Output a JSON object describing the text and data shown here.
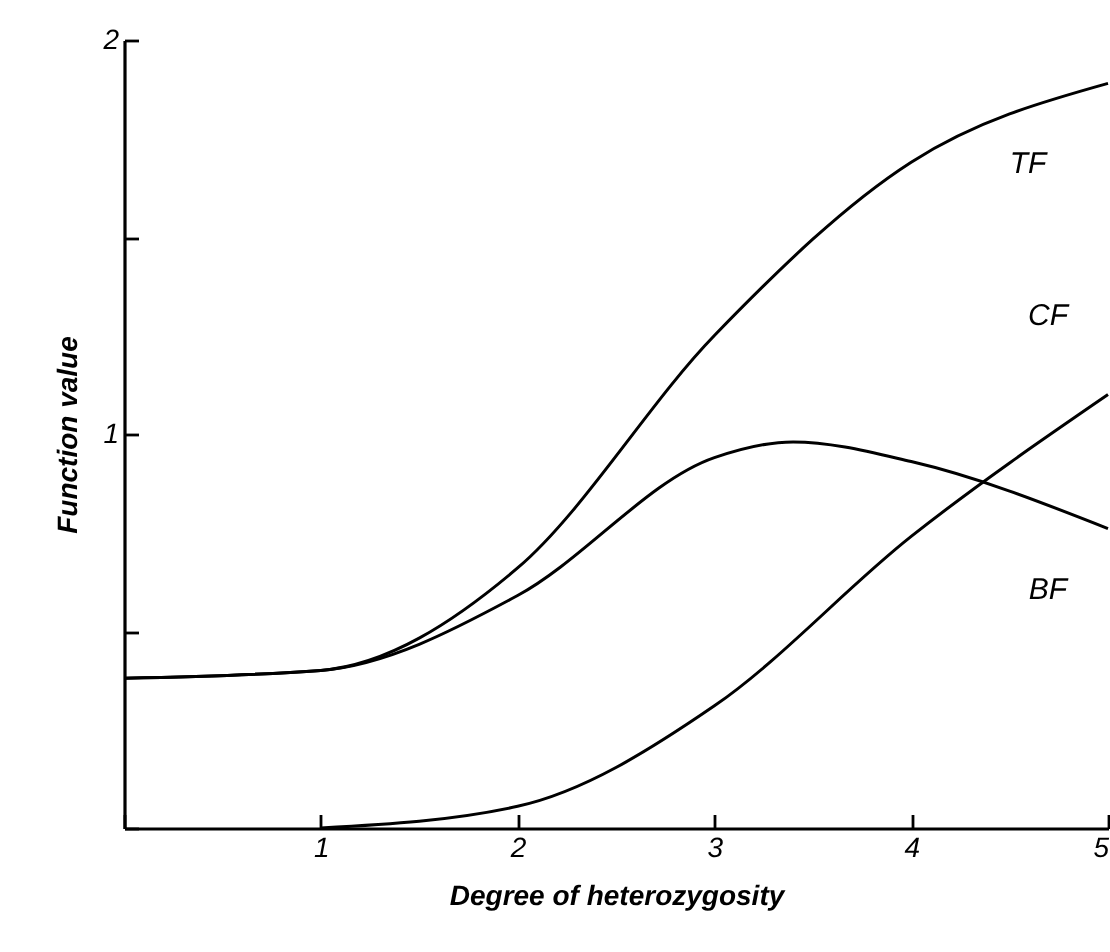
{
  "chart_data": {
    "type": "line",
    "xlabel": "Degree  of  heterozygosity",
    "ylabel": "Function  value",
    "xlim": [
      0,
      5
    ],
    "ylim": [
      0,
      2
    ],
    "xticks": [
      {
        "value": 0,
        "label": null
      },
      1,
      2,
      3,
      4,
      5
    ],
    "yticks": [
      {
        "value": 0,
        "label": null
      },
      {
        "value": 0.5,
        "label": null
      },
      1,
      {
        "value": 1.5,
        "label": null
      },
      2
    ],
    "grid": false,
    "series": [
      {
        "name": "TF",
        "color": "#000000",
        "x": [
          0,
          1,
          2,
          3,
          4,
          5
        ],
        "values": [
          0.38,
          0.4,
          0.66,
          1.25,
          1.69,
          1.89
        ]
      },
      {
        "name": "CF",
        "color": "#000000",
        "x": [
          1,
          2,
          3,
          4,
          5
        ],
        "values": [
          0,
          0.055,
          0.31,
          0.74,
          1.1
        ]
      },
      {
        "name": "BF",
        "color": "#000000",
        "x": [
          0,
          1,
          2,
          3,
          3.4,
          4,
          5
        ],
        "values": [
          0.38,
          0.4,
          0.59,
          0.94,
          0.98,
          0.93,
          0.76
        ]
      }
    ]
  }
}
